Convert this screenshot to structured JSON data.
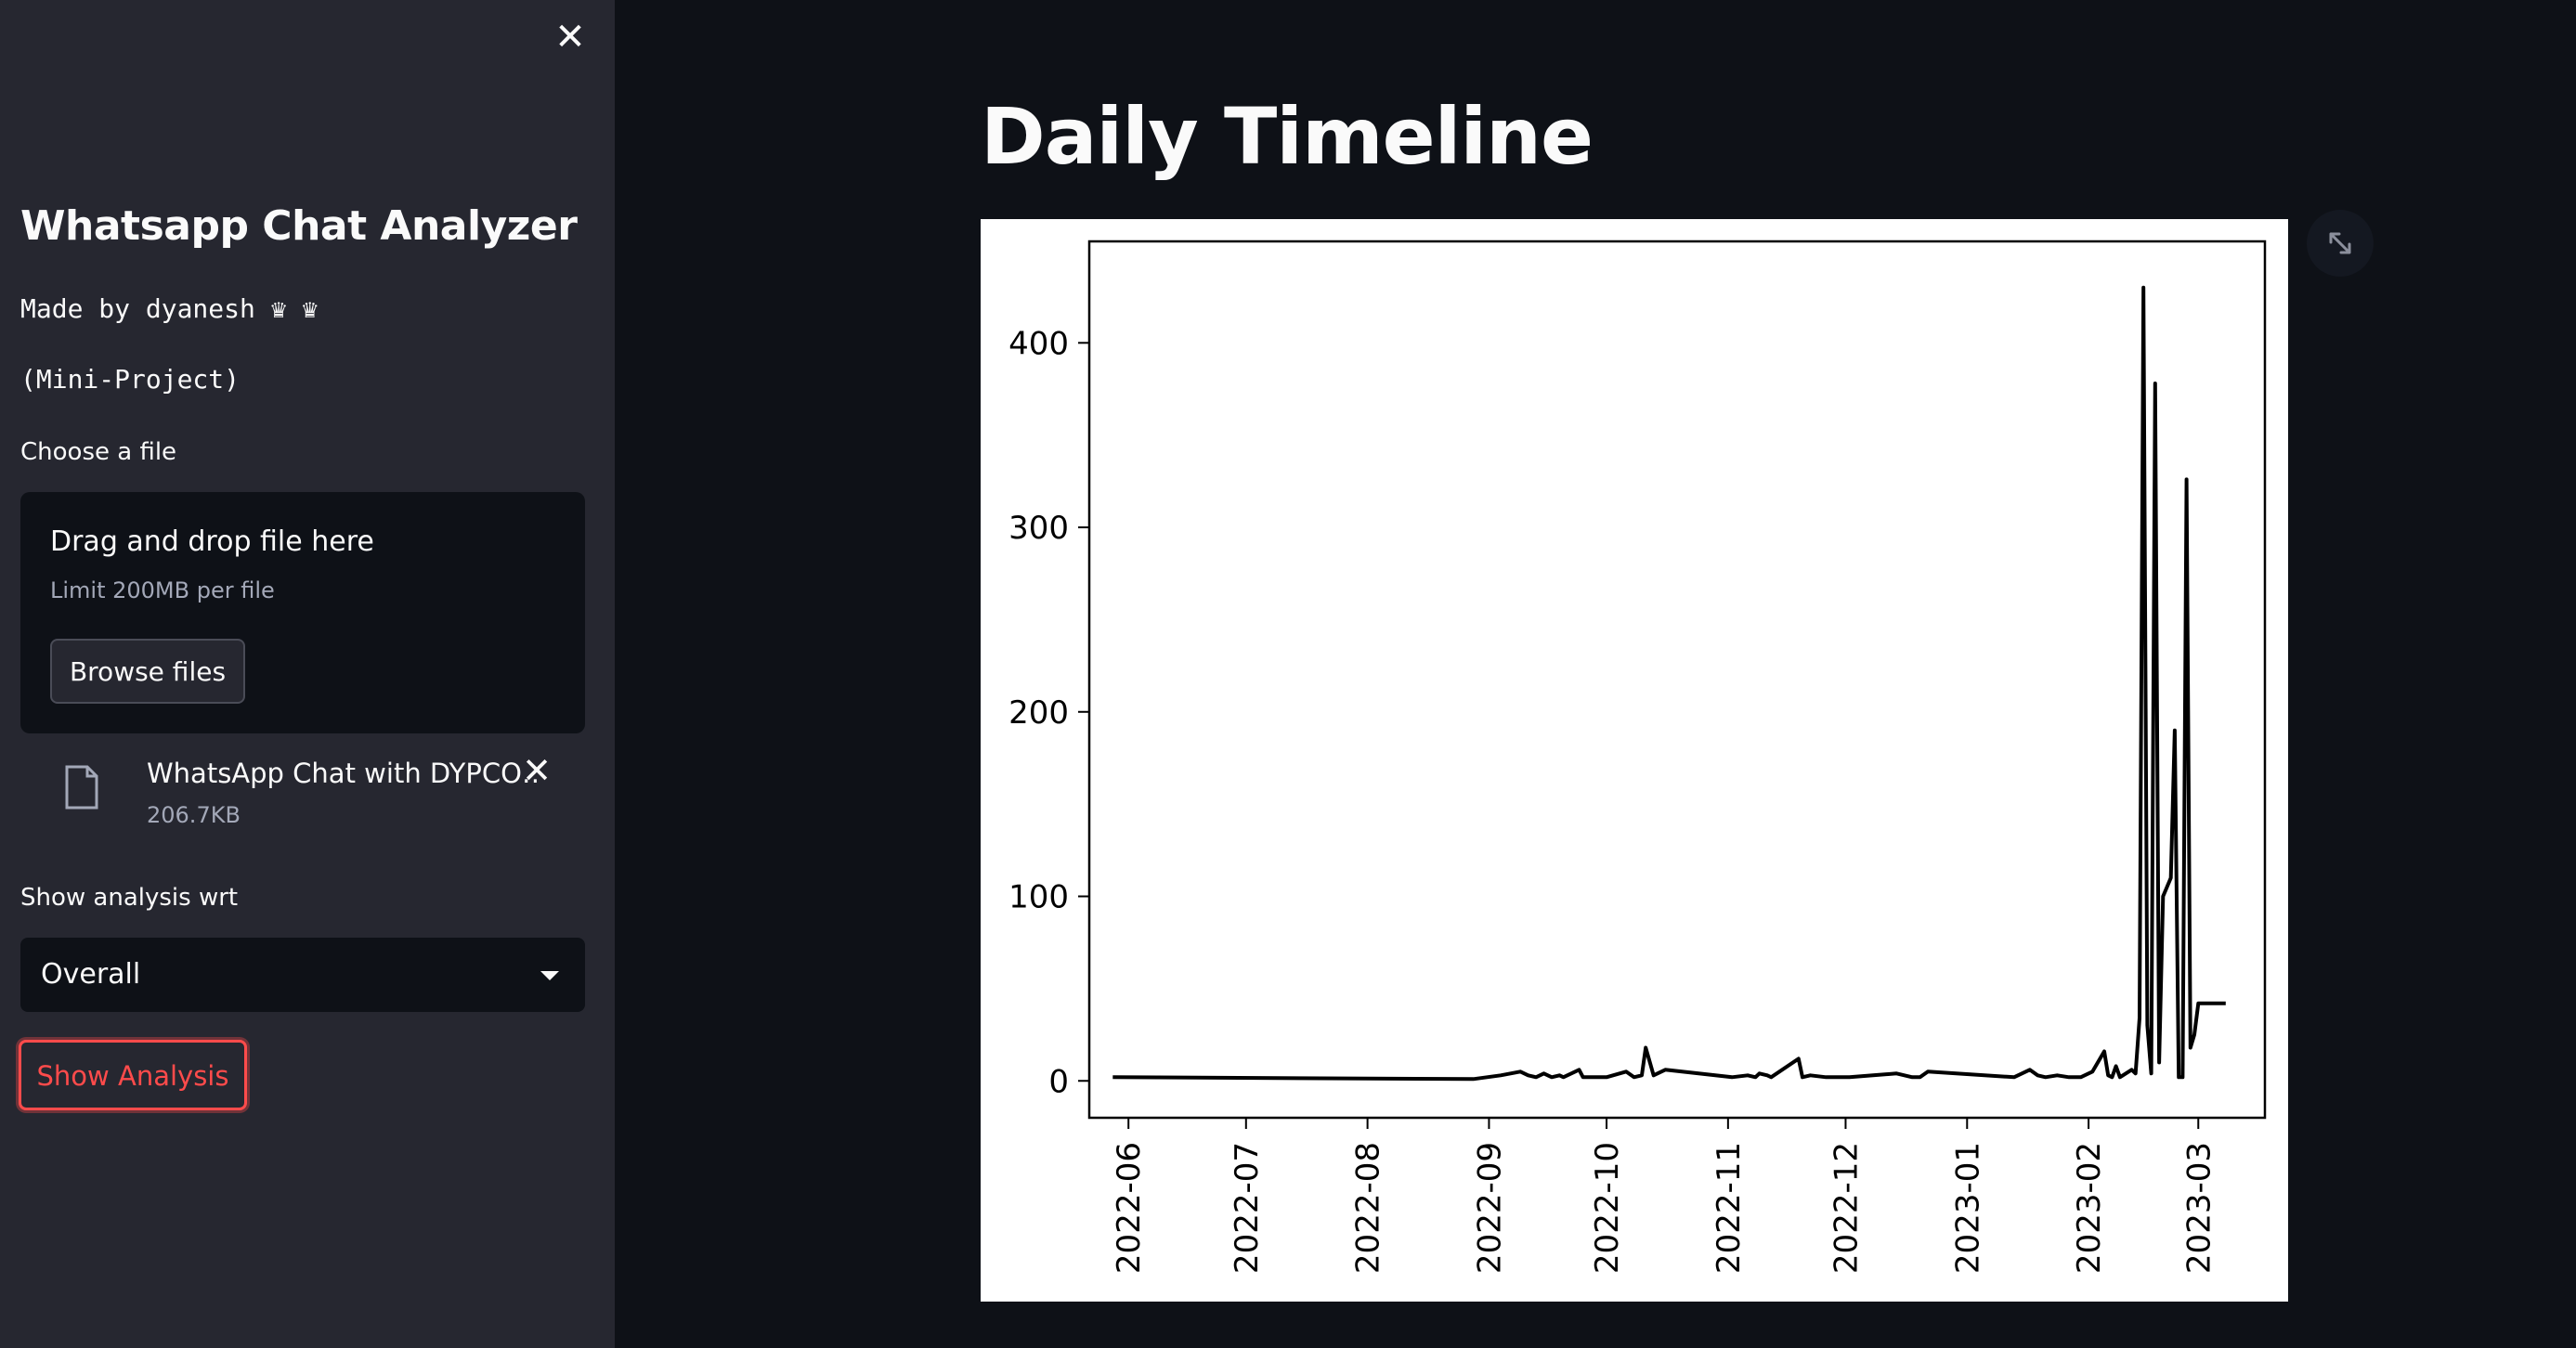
{
  "sidebar": {
    "app_title": "Whatsapp Chat Analyzer",
    "made_by": "Made by dyanesh ♛ ♛",
    "subtitle": "(Mini-Project)",
    "file_uploader": {
      "label": "Choose a file",
      "drop_title": "Drag and drop file here",
      "limit_text": "Limit 200MB per file",
      "browse_label": "Browse files"
    },
    "uploaded_file": {
      "name": "WhatsApp Chat with DYPCO…",
      "size": "206.7KB"
    },
    "analysis_select": {
      "label": "Show analysis wrt",
      "value": "Overall"
    },
    "show_button_label": "Show Analysis"
  },
  "icons": {
    "close": "close-icon",
    "file": "file-icon",
    "remove": "close-icon",
    "dropdown": "chevron-down-icon",
    "fullscreen": "fullscreen-icon"
  },
  "colors": {
    "accent": "#ff4b4b",
    "sidebar_bg": "#262730",
    "main_bg": "#0e1117",
    "line": "#000000"
  },
  "main": {
    "title": "Daily Timeline"
  },
  "chart_data": {
    "type": "line",
    "title": "",
    "xlabel": "",
    "ylabel": "",
    "grid": false,
    "ylim": [
      -20,
      455
    ],
    "xlim": [
      "2022-05-22",
      "2023-03-18"
    ],
    "y_ticks": [
      0,
      100,
      200,
      300,
      400
    ],
    "x_ticks": [
      "2022-06-01",
      "2022-07-01",
      "2022-08-01",
      "2022-09-01",
      "2022-10-01",
      "2022-11-01",
      "2022-12-01",
      "2023-01-01",
      "2023-02-01",
      "2023-03-01"
    ],
    "x_tick_labels": [
      "2022-06",
      "2022-07",
      "2022-08",
      "2022-09",
      "2022-10",
      "2022-11",
      "2022-12",
      "2023-01",
      "2023-02",
      "2023-03"
    ],
    "series": [
      {
        "x": [
          "2022-05-28",
          "2022-08-28",
          "2022-09-04",
          "2022-09-09",
          "2022-09-11",
          "2022-09-13",
          "2022-09-15",
          "2022-09-17",
          "2022-09-19",
          "2022-09-20",
          "2022-09-24",
          "2022-09-25",
          "2022-10-01",
          "2022-10-06",
          "2022-10-08",
          "2022-10-10",
          "2022-10-11",
          "2022-10-13",
          "2022-10-16",
          "2022-11-02",
          "2022-11-06",
          "2022-11-08",
          "2022-11-09",
          "2022-11-11",
          "2022-11-12",
          "2022-11-19",
          "2022-11-20",
          "2022-11-22",
          "2022-11-26",
          "2022-12-02",
          "2022-12-08",
          "2022-12-14",
          "2022-12-18",
          "2022-12-20",
          "2022-12-22",
          "2023-01-13",
          "2023-01-17",
          "2023-01-19",
          "2023-01-21",
          "2023-01-24",
          "2023-01-27",
          "2023-01-30",
          "2023-02-02",
          "2023-02-05",
          "2023-02-06",
          "2023-02-07",
          "2023-02-08",
          "2023-02-09",
          "2023-02-12",
          "2023-02-13",
          "2023-02-14",
          "2023-02-15",
          "2023-02-16",
          "2023-02-17",
          "2023-02-18",
          "2023-02-19",
          "2023-02-20",
          "2023-02-22",
          "2023-02-23",
          "2023-02-24",
          "2023-02-25",
          "2023-02-26",
          "2023-02-27",
          "2023-02-28",
          "2023-03-01",
          "2023-03-02",
          "2023-03-03",
          "2023-03-04",
          "2023-03-08"
        ],
        "y": [
          2,
          1,
          3,
          5,
          3,
          2,
          4,
          2,
          3,
          2,
          6,
          2,
          2,
          5,
          2,
          3,
          18,
          3,
          6,
          2,
          3,
          2,
          4,
          3,
          2,
          12,
          2,
          3,
          2,
          2,
          3,
          4,
          2,
          2,
          5,
          2,
          6,
          3,
          2,
          3,
          2,
          2,
          5,
          16,
          3,
          2,
          8,
          2,
          6,
          4,
          34,
          430,
          30,
          4,
          378,
          10,
          100,
          110,
          190,
          2,
          2,
          326,
          18,
          25,
          42,
          42,
          42,
          42,
          42
        ]
      }
    ]
  }
}
